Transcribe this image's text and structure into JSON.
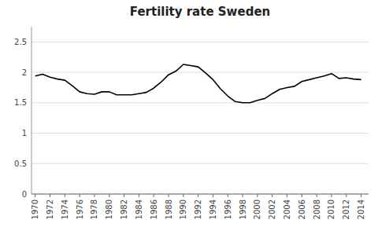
{
  "chart_data": {
    "type": "line",
    "title": "Fertility rate Sweden",
    "x": [
      1970,
      1971,
      1972,
      1973,
      1974,
      1975,
      1976,
      1977,
      1978,
      1979,
      1980,
      1981,
      1982,
      1983,
      1984,
      1985,
      1986,
      1987,
      1988,
      1989,
      1990,
      1991,
      1992,
      1993,
      1994,
      1995,
      1996,
      1997,
      1998,
      1999,
      2000,
      2001,
      2002,
      2003,
      2004,
      2005,
      2006,
      2007,
      2008,
      2009,
      2010,
      2011,
      2012,
      2013,
      2014
    ],
    "values": [
      1.94,
      1.97,
      1.92,
      1.89,
      1.87,
      1.78,
      1.68,
      1.65,
      1.64,
      1.68,
      1.68,
      1.63,
      1.63,
      1.63,
      1.65,
      1.67,
      1.74,
      1.84,
      1.96,
      2.02,
      2.13,
      2.11,
      2.09,
      1.99,
      1.88,
      1.73,
      1.61,
      1.52,
      1.5,
      1.5,
      1.54,
      1.57,
      1.65,
      1.72,
      1.75,
      1.77,
      1.85,
      1.88,
      1.91,
      1.94,
      1.98,
      1.9,
      1.91,
      1.89,
      1.88
    ],
    "color": "#000000",
    "xlim": [
      1969.5,
      2015.0
    ],
    "xticks": [
      1970,
      1972,
      1974,
      1976,
      1978,
      1980,
      1982,
      1984,
      1986,
      1988,
      1990,
      1992,
      1994,
      1996,
      1998,
      2000,
      2002,
      2004,
      2006,
      2008,
      2010,
      2012,
      2014
    ],
    "ylim": [
      0,
      2.75
    ],
    "yticks": [
      0,
      0.5,
      1,
      1.5,
      2,
      2.5
    ],
    "grid": true
  }
}
